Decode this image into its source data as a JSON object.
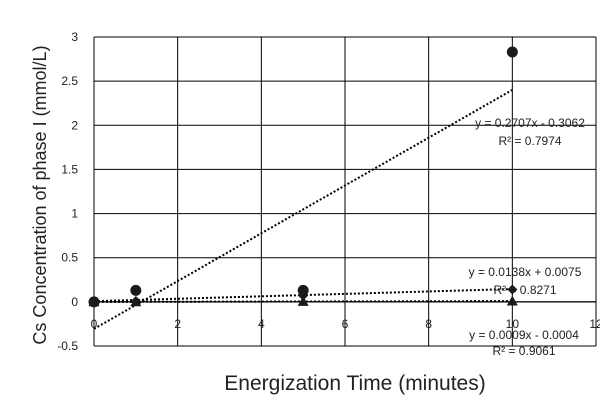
{
  "chart_data": {
    "type": "scatter",
    "xlabel": "Energization Time (minutes)",
    "ylabel": "Cs Concentration of phase I (mmol/L)",
    "xlim": [
      0,
      12
    ],
    "ylim": [
      -0.5,
      3
    ],
    "x_ticks": [
      0,
      2,
      4,
      6,
      8,
      10,
      12
    ],
    "y_ticks": [
      -0.5,
      0,
      0.5,
      1,
      1.5,
      2,
      2.5,
      3
    ],
    "x_tick_labels": [
      "0",
      "2",
      "4",
      "6",
      "8",
      "10",
      "12"
    ],
    "y_tick_labels": [
      "-0.5",
      "0",
      "0.5",
      "1",
      "1.5",
      "2",
      "2.5",
      "3"
    ],
    "grid": true,
    "series": [
      {
        "marker": "circle",
        "x": [
          0,
          1,
          5,
          10
        ],
        "y": [
          0,
          0.13,
          0.13,
          2.83
        ],
        "trendline": {
          "slope": 0.2707,
          "intercept": -0.3062
        },
        "equation": "y = 0.2707x - 0.3062",
        "r2": "R² = 0.7974"
      },
      {
        "marker": "diamond",
        "x": [
          0,
          1,
          5,
          10
        ],
        "y": [
          0,
          0.01,
          0.07,
          0.14
        ],
        "trendline": {
          "slope": 0.0138,
          "intercept": 0.0075
        },
        "equation": "y = 0.0138x + 0.0075",
        "r2": "R² = 0.8271"
      },
      {
        "marker": "triangle",
        "x": [
          0,
          1,
          5,
          10
        ],
        "y": [
          0,
          0,
          0.004,
          0.008
        ],
        "trendline": {
          "slope": 0.0009,
          "intercept": -0.0004
        },
        "equation": "y = 0.0009x - 0.0004",
        "r2": "R² = 0.9061"
      }
    ],
    "colors": {
      "marker": "#1a1a1a",
      "grid": "#000000",
      "text": "#222222"
    }
  }
}
